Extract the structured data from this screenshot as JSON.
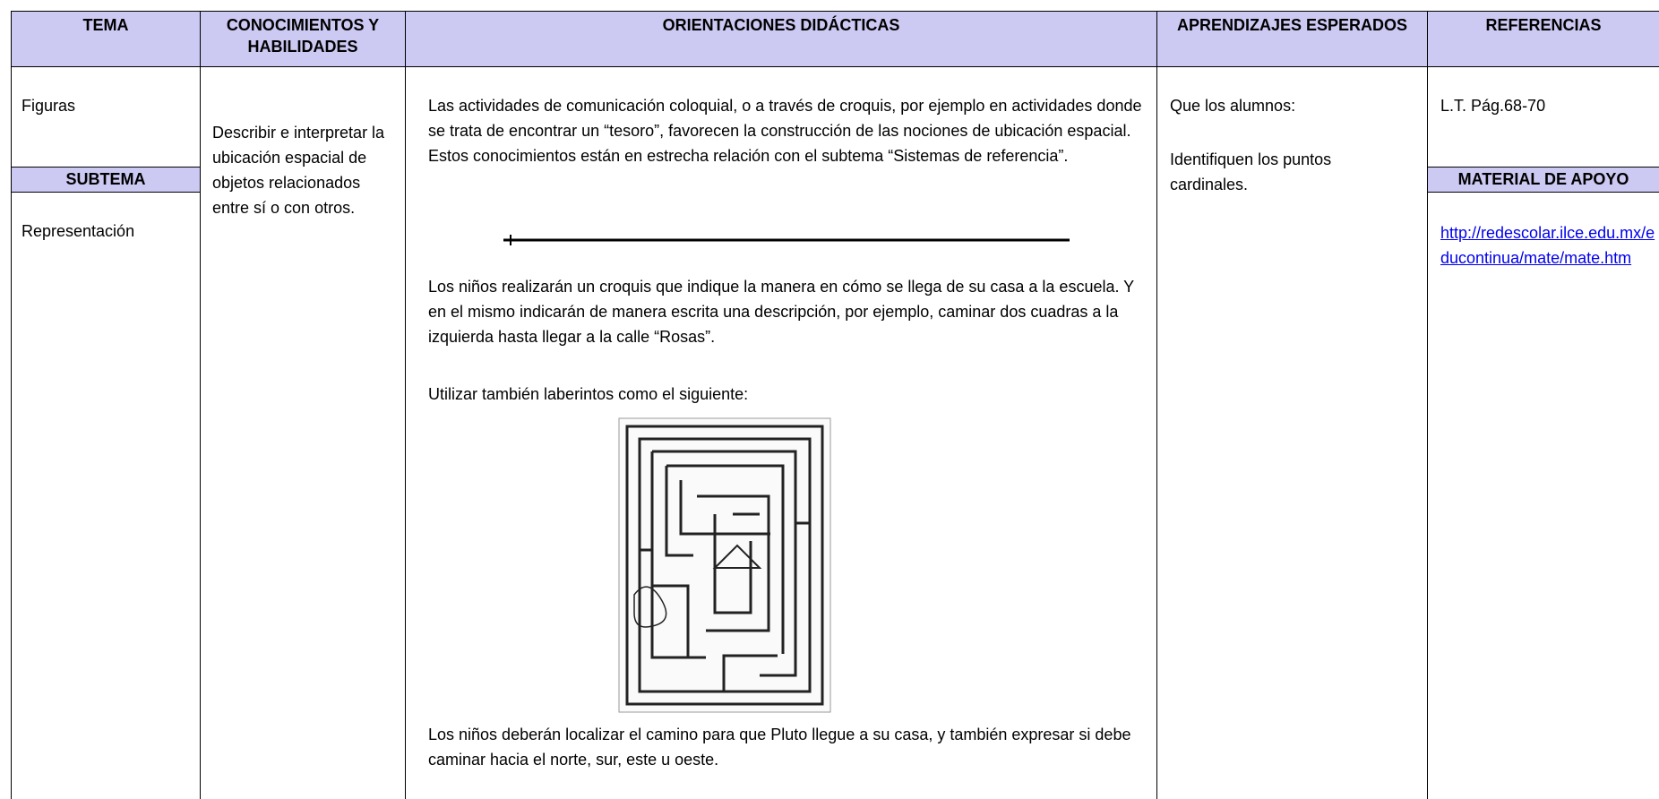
{
  "header": {
    "columns": [
      "TEMA",
      "CONOCIMIENTOS Y HABILIDADES",
      "ORIENTACIONES DIDÁCTICAS",
      "APRENDIZAJES ESPERADOS",
      "REFERENCIAS"
    ]
  },
  "tema": {
    "value": "Figuras",
    "subtema_label": "SUBTEMA",
    "subtema": "Representación"
  },
  "conocimientos": "Describir e interpretar la ubicación espacial de objetos relacionados entre sí o con otros.",
  "orientaciones": {
    "paragraphs": [
      "Las actividades de comunicación coloquial, o a través de croquis, por ejemplo en actividades donde se trata de encontrar un “tesoro”, favorecen la construcción de las nociones de ubicación espacial. Estos conocimientos están en estrecha relación con el subtema “Sistemas de referencia”.",
      "Los niños realizarán un croquis que indique la manera en  cómo se llega de su casa a la escuela. Y en el mismo indicarán de manera escrita una descripción, por ejemplo, caminar dos cuadras a la izquierda hasta llegar a la calle “Rosas”.",
      "Utilizar también laberintos como el siguiente:",
      "Los niños deberán localizar el camino para que Pluto llegue a su casa, y también expresar si debe caminar hacia el norte, sur, este u oeste."
    ]
  },
  "aprendizajes": [
    "Que los alumnos:",
    "Identifiquen los puntos cardinales."
  ],
  "referencias": {
    "text": "L.T. Pág.68-70",
    "material_label": "MATERIAL DE APOYO",
    "link": "http://redescolar.ilce.edu.mx/educontinua/mate/mate.htm"
  }
}
